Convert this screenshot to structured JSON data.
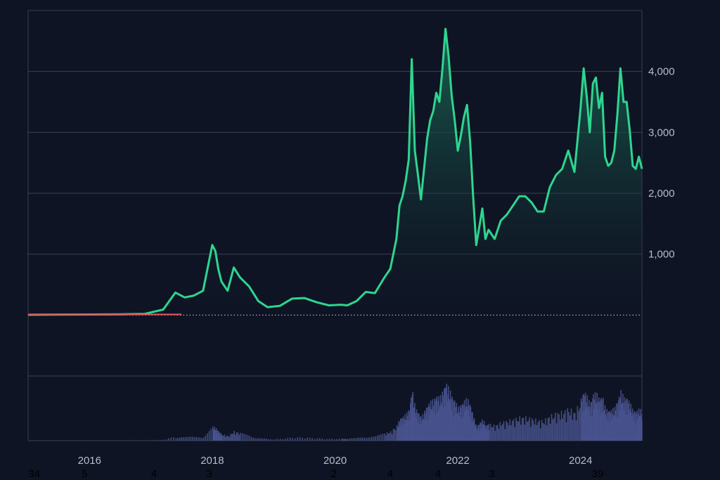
{
  "chart_data": {
    "type": "area",
    "title": "",
    "xlabel": "",
    "ylabel": "",
    "x_range": [
      2015.0,
      2025.0
    ],
    "ylim": [
      -1000,
      5000
    ],
    "y_ticks": [
      {
        "value": 1000,
        "label": "1,000"
      },
      {
        "value": 2000,
        "label": "2,000"
      },
      {
        "value": 3000,
        "label": "3,000"
      },
      {
        "value": 4000,
        "label": "4,000"
      }
    ],
    "x_ticks": [
      {
        "value": 2016.0,
        "label": "2016"
      },
      {
        "value": 2018.0,
        "label": "2018"
      },
      {
        "value": 2020.0,
        "label": "2020"
      },
      {
        "value": 2022.0,
        "label": "2022"
      },
      {
        "value": 2024.0,
        "label": "2024"
      }
    ],
    "baseline": 0,
    "grid": true,
    "colors": {
      "background": "#0f1424",
      "line": "#2fd58f",
      "area_top": "#1a6a55",
      "area_bottom": "#0f1424",
      "negative": "#e0555a",
      "grid": "#3a4152",
      "volume": "#4a5590",
      "baseline_dots": "#c9ccd6"
    },
    "series": [
      {
        "x": [
          2015.0,
          2015.5,
          2016.0,
          2016.5,
          2016.9,
          2017.2,
          2017.4,
          2017.55,
          2017.7,
          2017.85,
          2018.0,
          2018.05,
          2018.1,
          2018.15,
          2018.25,
          2018.35,
          2018.45,
          2018.6,
          2018.75,
          2018.9,
          2019.1,
          2019.3,
          2019.5,
          2019.7,
          2019.9,
          2020.1,
          2020.2,
          2020.35,
          2020.5,
          2020.65,
          2020.8,
          2020.9,
          2021.0,
          2021.05,
          2021.1,
          2021.15,
          2021.2,
          2021.25,
          2021.3,
          2021.35,
          2021.4,
          2021.45,
          2021.5,
          2021.55,
          2021.6,
          2021.65,
          2021.7,
          2021.75,
          2021.8,
          2021.85,
          2021.9,
          2021.95,
          2022.0,
          2022.05,
          2022.1,
          2022.15,
          2022.2,
          2022.25,
          2022.3,
          2022.35,
          2022.4,
          2022.45,
          2022.5,
          2022.6,
          2022.7,
          2022.8,
          2022.9,
          2023.0,
          2023.1,
          2023.2,
          2023.3,
          2023.4,
          2023.5,
          2023.6,
          2023.7,
          2023.8,
          2023.9,
          2024.0,
          2024.05,
          2024.1,
          2024.15,
          2024.2,
          2024.25,
          2024.3,
          2024.35,
          2024.4,
          2024.45,
          2024.5,
          2024.55,
          2024.6,
          2024.65,
          2024.7,
          2024.75,
          2024.8,
          2024.85,
          2024.9,
          2024.95,
          2025.0
        ],
        "y": [
          5,
          8,
          10,
          12,
          20,
          90,
          370,
          290,
          320,
          400,
          1150,
          1050,
          750,
          550,
          400,
          780,
          620,
          470,
          230,
          130,
          150,
          270,
          280,
          210,
          160,
          170,
          160,
          230,
          380,
          360,
          610,
          760,
          1250,
          1800,
          1950,
          2200,
          2550,
          4200,
          2700,
          2300,
          1900,
          2400,
          2900,
          3200,
          3350,
          3650,
          3500,
          4050,
          4700,
          4250,
          3600,
          3200,
          2700,
          2950,
          3250,
          3450,
          2850,
          1950,
          1150,
          1450,
          1750,
          1250,
          1400,
          1250,
          1550,
          1650,
          1800,
          1950,
          1950,
          1850,
          1700,
          1700,
          2100,
          2300,
          2400,
          2700,
          2350,
          3400,
          4050,
          3600,
          3000,
          3800,
          3900,
          3400,
          3650,
          2600,
          2450,
          2500,
          2700,
          3300,
          4050,
          3500,
          3500,
          3050,
          2450,
          2400,
          2600,
          2400
        ]
      }
    ]
  },
  "footer_labels": [
    {
      "text": "34",
      "x": 2015.1
    },
    {
      "text": "5",
      "x": 2015.92
    },
    {
      "text": "4",
      "x": 2017.05
    },
    {
      "text": "3",
      "x": 2017.95
    },
    {
      "text": "2",
      "x": 2019.98
    },
    {
      "text": "4",
      "x": 2020.9
    },
    {
      "text": "4",
      "x": 2021.68
    },
    {
      "text": "3",
      "x": 2022.55
    },
    {
      "text": "39",
      "x": 2024.28
    }
  ]
}
